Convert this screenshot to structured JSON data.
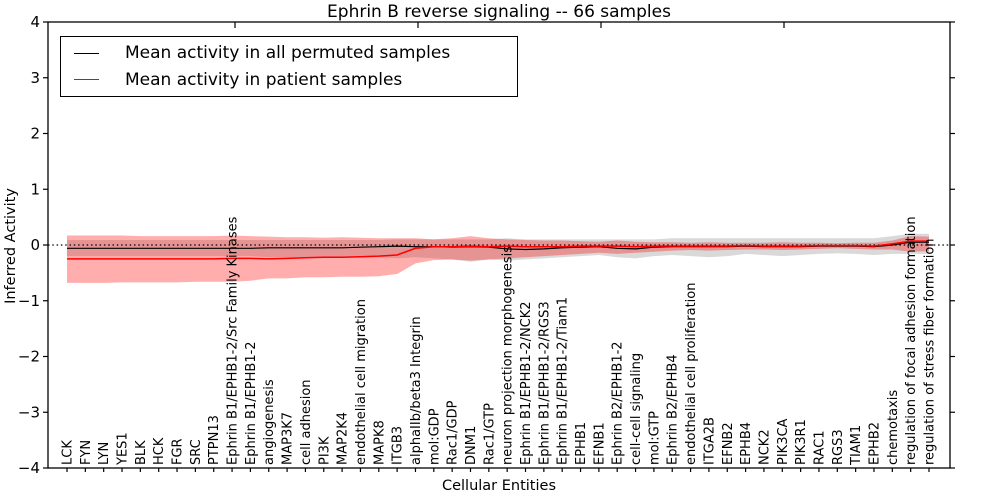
{
  "title": "Ephrin B reverse signaling -- 66 samples",
  "xlabel": "Cellular Entities",
  "ylabel": "Inferred Activity",
  "legend": {
    "items": [
      {
        "label": "Mean activity in all permuted samples",
        "color": "#000000"
      },
      {
        "label": "Mean activity in patient samples",
        "color": "#ff0000"
      }
    ]
  },
  "colors": {
    "permuted_line": "#000000",
    "patient_line": "#ff0000",
    "permuted_band": "rgba(0,0,0,0.15)",
    "patient_band": "rgba(255,0,0,0.32)",
    "axis": "#000000",
    "background": "#ffffff"
  },
  "chart_data": {
    "type": "line",
    "title": "Ephrin B reverse signaling -- 66 samples",
    "xlabel": "Cellular Entities",
    "ylabel": "Inferred Activity",
    "ylim": [
      -4,
      4
    ],
    "yticks": [
      -4,
      -3,
      -2,
      -1,
      0,
      1,
      2,
      3,
      4
    ],
    "ytick_labels": [
      "−4",
      "−3",
      "−2",
      "−1",
      "0",
      "1",
      "2",
      "3",
      "4"
    ],
    "grid": false,
    "legend_position": "upper left",
    "zero_line_style": "dotted",
    "categories": [
      "LCK",
      "FYN",
      "LYN",
      "YES1",
      "BLK",
      "HCK",
      "FGR",
      "SRC",
      "PTPN13",
      "Ephrin B1/EPHB1-2/Src Family Kinases",
      "Ephrin B1/EPHB1-2",
      "angiogenesis",
      "MAP3K7",
      "cell adhesion",
      "PI3K",
      "MAP2K4",
      "endothelial cell migration",
      "MAPK8",
      "ITGB3",
      "alphaIIb/beta3 Integrin",
      "mol:GDP",
      "Rac1/GDP",
      "DNM1",
      "Rac1/GTP",
      "neuron projection morphogenesis",
      "Ephrin B1/EPHB1-2/NCK2",
      "Ephrin B1/EPHB1-2/RGS3",
      "Ephrin B1/EPHB1-2/Tiam1",
      "EPHB1",
      "EFNB1",
      "Ephrin B2/EPHB1-2",
      "cell-cell signaling",
      "mol:GTP",
      "Ephrin B2/EPHB4",
      "endothelial cell proliferation",
      "ITGA2B",
      "EFNB2",
      "EPHB4",
      "NCK2",
      "PIK3CA",
      "PIK3R1",
      "RAC1",
      "RGS3",
      "TIAM1",
      "EPHB2",
      "chemotaxis",
      "regulation of focal adhesion formation",
      "regulation of stress fiber formation"
    ],
    "series": [
      {
        "name": "Mean activity in all permuted samples",
        "role": "mean_line",
        "color": "#000000",
        "values": [
          -0.06,
          -0.06,
          -0.06,
          -0.06,
          -0.06,
          -0.06,
          -0.06,
          -0.06,
          -0.06,
          -0.06,
          -0.06,
          -0.05,
          -0.05,
          -0.05,
          -0.05,
          -0.05,
          -0.04,
          -0.03,
          -0.02,
          -0.03,
          -0.03,
          -0.04,
          -0.03,
          -0.04,
          -0.07,
          -0.08,
          -0.07,
          -0.05,
          -0.04,
          -0.03,
          -0.06,
          -0.07,
          -0.04,
          -0.03,
          -0.03,
          -0.03,
          -0.03,
          -0.02,
          -0.03,
          -0.03,
          -0.03,
          -0.02,
          -0.02,
          -0.02,
          -0.03,
          0.0,
          0.05,
          0.05
        ]
      },
      {
        "name": "Permuted samples band upper",
        "role": "band_upper",
        "band_of": "Mean activity in all permuted samples",
        "values": [
          0.09,
          0.09,
          0.09,
          0.09,
          0.09,
          0.09,
          0.09,
          0.09,
          0.09,
          0.09,
          0.09,
          0.09,
          0.09,
          0.09,
          0.09,
          0.09,
          0.09,
          0.09,
          0.1,
          0.1,
          0.1,
          0.1,
          0.1,
          0.1,
          0.12,
          0.1,
          0.1,
          0.1,
          0.1,
          0.1,
          0.1,
          0.1,
          0.1,
          0.12,
          0.12,
          0.12,
          0.12,
          0.12,
          0.12,
          0.12,
          0.12,
          0.12,
          0.12,
          0.12,
          0.12,
          0.16,
          0.2,
          0.2
        ]
      },
      {
        "name": "Permuted samples band lower",
        "role": "band_lower",
        "band_of": "Mean activity in all permuted samples",
        "values": [
          -0.2,
          -0.2,
          -0.2,
          -0.2,
          -0.2,
          -0.2,
          -0.2,
          -0.2,
          -0.2,
          -0.2,
          -0.2,
          -0.22,
          -0.22,
          -0.22,
          -0.22,
          -0.22,
          -0.22,
          -0.22,
          -0.24,
          -0.22,
          -0.24,
          -0.26,
          -0.3,
          -0.26,
          -0.28,
          -0.26,
          -0.24,
          -0.22,
          -0.2,
          -0.18,
          -0.22,
          -0.24,
          -0.2,
          -0.18,
          -0.2,
          -0.22,
          -0.2,
          -0.16,
          -0.18,
          -0.2,
          -0.18,
          -0.16,
          -0.15,
          -0.16,
          -0.18,
          -0.16,
          -0.16,
          -0.16
        ]
      },
      {
        "name": "Mean activity in patient samples",
        "role": "mean_line",
        "color": "#ff0000",
        "values": [
          -0.25,
          -0.25,
          -0.25,
          -0.25,
          -0.25,
          -0.25,
          -0.25,
          -0.25,
          -0.25,
          -0.24,
          -0.24,
          -0.25,
          -0.24,
          -0.23,
          -0.22,
          -0.22,
          -0.21,
          -0.2,
          -0.18,
          -0.06,
          -0.03,
          -0.03,
          -0.02,
          -0.03,
          -0.02,
          -0.03,
          -0.03,
          -0.03,
          -0.02,
          -0.02,
          -0.02,
          -0.03,
          -0.02,
          -0.02,
          -0.02,
          -0.02,
          -0.02,
          -0.01,
          -0.02,
          -0.02,
          -0.02,
          -0.01,
          -0.01,
          -0.01,
          -0.02,
          0.02,
          0.07,
          0.07
        ]
      },
      {
        "name": "Patient samples band upper",
        "role": "band_upper",
        "band_of": "Mean activity in patient samples",
        "values": [
          0.17,
          0.17,
          0.17,
          0.17,
          0.16,
          0.16,
          0.16,
          0.16,
          0.16,
          0.17,
          0.16,
          0.15,
          0.14,
          0.14,
          0.13,
          0.14,
          0.13,
          0.12,
          0.12,
          0.12,
          0.1,
          0.12,
          0.16,
          0.12,
          0.1,
          0.09,
          0.08,
          0.08,
          0.07,
          0.06,
          0.08,
          0.06,
          0.05,
          0.05,
          0.04,
          0.05,
          0.04,
          0.04,
          0.04,
          0.05,
          0.04,
          0.04,
          0.03,
          0.04,
          0.04,
          0.08,
          0.16,
          0.15
        ]
      },
      {
        "name": "Patient samples band lower",
        "role": "band_lower",
        "band_of": "Mean activity in patient samples",
        "values": [
          -0.68,
          -0.68,
          -0.68,
          -0.67,
          -0.67,
          -0.67,
          -0.67,
          -0.66,
          -0.66,
          -0.66,
          -0.64,
          -0.6,
          -0.6,
          -0.58,
          -0.58,
          -0.57,
          -0.57,
          -0.56,
          -0.52,
          -0.33,
          -0.27,
          -0.26,
          -0.28,
          -0.26,
          -0.24,
          -0.22,
          -0.2,
          -0.18,
          -0.16,
          -0.14,
          -0.16,
          -0.14,
          -0.12,
          -0.1,
          -0.09,
          -0.1,
          -0.09,
          -0.08,
          -0.08,
          -0.09,
          -0.08,
          -0.07,
          -0.06,
          -0.07,
          -0.08,
          -0.08,
          -0.12,
          -0.11
        ]
      }
    ]
  }
}
